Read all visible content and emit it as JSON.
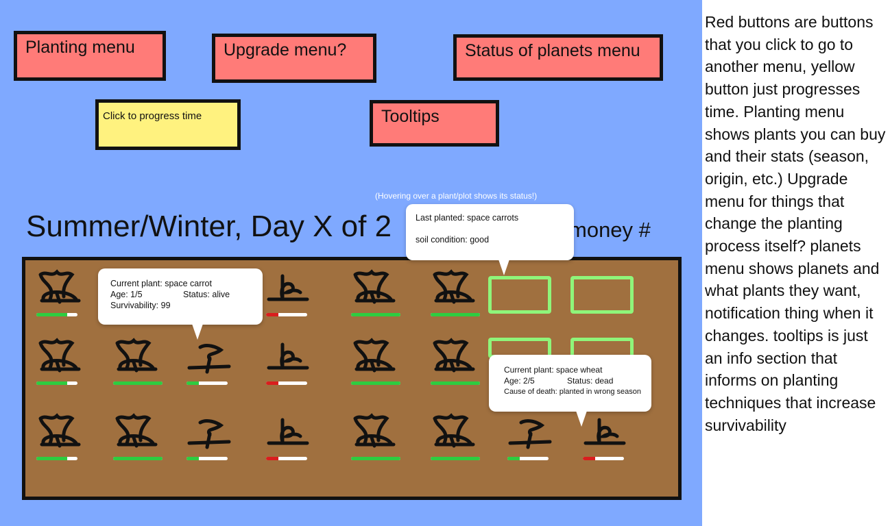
{
  "buttons": {
    "planting_menu": "Planting menu",
    "upgrade_menu": "Upgrade menu?",
    "status_of_planets_menu": "Status of planets menu",
    "progress_time": "Click to progress time",
    "tooltips": "Tooltips"
  },
  "hud": {
    "day_title": "Summer/Winter, Day X of 2",
    "money": "money #",
    "hover_hint": "(Hovering over a plant/plot shows its status!)"
  },
  "tooltips": {
    "plot": {
      "line1": "Last planted: space carrots",
      "line2": "soil condition: good"
    },
    "carrot": {
      "plant": "Current plant: space carrot",
      "age": "Age: 1/5",
      "status": "Status: alive",
      "survivability": "Survivability:  99"
    },
    "wheat": {
      "plant": "Current plant: space wheat",
      "age": "Age: 2/5",
      "status": "Status: dead",
      "cause": "Cause of death: planted in wrong season"
    }
  },
  "field": {
    "rows": [
      [
        {
          "kind": "bush",
          "health": 0.75
        },
        {
          "kind": "none"
        },
        {
          "kind": "none"
        },
        {
          "kind": "sprout",
          "health": 0.3
        },
        {
          "kind": "bush",
          "health": 1.0
        },
        {
          "kind": "bush",
          "health": 1.0
        },
        {
          "kind": "empty"
        },
        {
          "kind": "empty"
        }
      ],
      [
        {
          "kind": "bush",
          "health": 0.75
        },
        {
          "kind": "bush",
          "health": 1.0
        },
        {
          "kind": "stalk",
          "health": 0.3
        },
        {
          "kind": "sprout",
          "health": 0.3
        },
        {
          "kind": "bush",
          "health": 1.0
        },
        {
          "kind": "bush",
          "health": 1.0
        },
        {
          "kind": "empty"
        },
        {
          "kind": "empty"
        }
      ],
      [
        {
          "kind": "bush",
          "health": 0.75
        },
        {
          "kind": "bush",
          "health": 1.0
        },
        {
          "kind": "stalk",
          "health": 0.3
        },
        {
          "kind": "sprout",
          "health": 0.3
        },
        {
          "kind": "bush",
          "health": 1.0
        },
        {
          "kind": "bush",
          "health": 1.0
        },
        {
          "kind": "stalk",
          "health": 0.3
        },
        {
          "kind": "sprout",
          "health": 0.3
        }
      ]
    ]
  },
  "notes": "Red buttons are buttons that you click to go to another menu, yellow button just progresses time. Planting menu shows plants you can buy and their stats (season, origin, etc.) Upgrade menu for things that change the planting process itself? planets menu shows planets and what plants they want, notification thing when it changes. tooltips is just an info section that informs on planting techniques that increase survivability",
  "colors": {
    "background": "#7fa9ff",
    "red_button": "#ff7b78",
    "yellow_button": "#fff27f",
    "soil": "#a0703f",
    "empty_plot": "#8ff57a",
    "health_good": "#2ecc40",
    "health_bad": "#d91e1e"
  }
}
